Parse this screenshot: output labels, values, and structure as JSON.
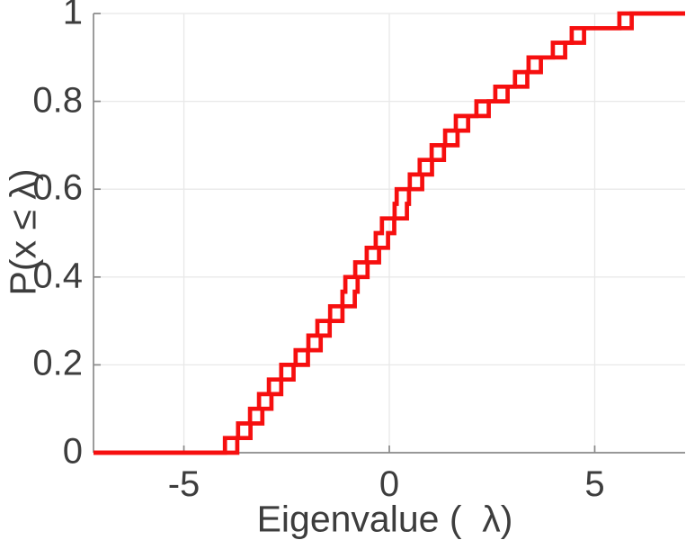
{
  "chart_data": {
    "type": "line",
    "subtype": "ecdf_stairs",
    "title": "",
    "xlabel": "Eigenvalue (  λ)",
    "ylabel": "P(x ≤ λ)",
    "xlim": [
      -7.2,
      7.2
    ],
    "ylim": [
      0,
      1
    ],
    "xticks": [
      -5,
      0,
      5
    ],
    "yticks": [
      0,
      0.2,
      0.4,
      0.6,
      0.8,
      1
    ],
    "grid": true,
    "legend_position": "none",
    "n_points": 30,
    "step_height": 0.0333,
    "eigenvalues": [
      -4.0,
      -3.68,
      -3.39,
      -3.17,
      -2.93,
      -2.63,
      -2.28,
      -1.97,
      -1.75,
      -1.44,
      -1.14,
      -1.07,
      -0.83,
      -0.55,
      -0.33,
      -0.18,
      0.13,
      0.18,
      0.5,
      0.74,
      1.03,
      1.36,
      1.62,
      2.12,
      2.58,
      3.06,
      3.39,
      3.98,
      4.44,
      5.6
    ],
    "second_curve_x_offset": 0.3,
    "line_color": "#f60f0f",
    "grid_color": "#e8e8e8",
    "axis_color": "#8a8a8a",
    "text_color": "#3d3d3d"
  },
  "labels": {
    "xlabel": "Eigenvalue (  λ)",
    "ylabel": "P(x ≤ λ)",
    "x_ticks": [
      "-5",
      "0",
      "5"
    ],
    "y_ticks": [
      "1",
      "0.8",
      "0.6",
      "0.4",
      "0.2",
      "0"
    ]
  }
}
